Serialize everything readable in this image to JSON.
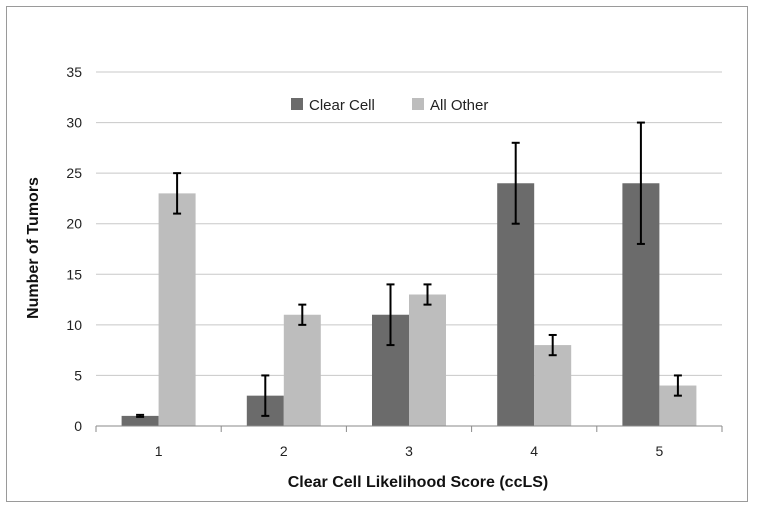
{
  "chart_data": {
    "type": "bar",
    "title": "",
    "xlabel": "Clear Cell Likelihood Score (ccLS)",
    "ylabel": "Number of Tumors",
    "categories": [
      "1",
      "2",
      "3",
      "4",
      "5"
    ],
    "ylim": [
      0,
      35
    ],
    "yticks": [
      0,
      5,
      10,
      15,
      20,
      25,
      30,
      35
    ],
    "grid": true,
    "legend_position": "top-center",
    "series": [
      {
        "name": "Clear Cell",
        "color": "#6b6b6b",
        "values": [
          1,
          3,
          11,
          24,
          24
        ],
        "error_low": [
          0.9,
          1,
          8,
          20,
          18
        ],
        "error_high": [
          1.1,
          5,
          14,
          28,
          30
        ]
      },
      {
        "name": "All Other",
        "color": "#bdbdbd",
        "values": [
          23,
          11,
          13,
          8,
          4
        ],
        "error_low": [
          21,
          10,
          12,
          7,
          3
        ],
        "error_high": [
          25,
          12,
          14,
          9,
          5
        ]
      }
    ]
  }
}
